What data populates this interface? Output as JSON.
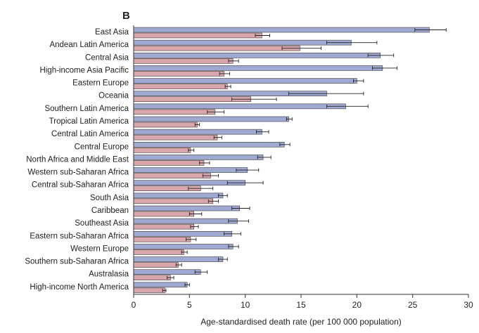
{
  "chart_data": {
    "type": "bar",
    "orientation": "horizontal",
    "panel_label": "B",
    "xlabel": "Age-standardised death rate (per 100 000 population)",
    "xlim": [
      0,
      30
    ],
    "xticks": [
      0,
      5,
      10,
      15,
      20,
      25,
      30
    ],
    "colors": {
      "series_1": "#9fa9d2",
      "series_2": "#d9a6ab"
    },
    "categories": [
      "East Asia",
      "Andean Latin America",
      "Central Asia",
      "High-income Asia Pacific",
      "Eastern Europe",
      "Oceania",
      "Southern Latin America",
      "Tropical Latin America",
      "Central Latin America",
      "Central Europe",
      "North Africa and Middle East",
      "Western sub-Saharan Africa",
      "Central sub-Saharan Africa",
      "South Asia",
      "Caribbean",
      "Southeast Asia",
      "Eastern sub-Saharan Africa",
      "Western Europe",
      "Southern sub-Saharan Africa",
      "Australasia",
      "High-income North America"
    ],
    "series": [
      {
        "name": "series_1",
        "values": [
          26.5,
          19.5,
          22.1,
          22.3,
          20.0,
          17.3,
          19.0,
          13.9,
          11.5,
          13.5,
          11.6,
          10.2,
          10.0,
          8.0,
          9.5,
          9.3,
          8.8,
          8.9,
          8.0,
          6.0,
          4.8
        ],
        "ci_low": [
          25.2,
          17.3,
          21.0,
          21.4,
          19.7,
          13.9,
          17.3,
          13.7,
          11.0,
          13.1,
          11.1,
          9.2,
          8.4,
          7.6,
          8.8,
          8.5,
          8.1,
          8.5,
          7.6,
          5.5,
          4.6
        ],
        "ci_high": [
          28.0,
          21.8,
          23.3,
          23.6,
          20.6,
          20.6,
          21.0,
          14.2,
          12.1,
          14.0,
          12.3,
          11.2,
          11.6,
          8.4,
          10.4,
          10.3,
          9.6,
          9.4,
          8.4,
          6.6,
          5.0
        ]
      },
      {
        "name": "series_2",
        "values": [
          11.5,
          14.9,
          8.9,
          8.1,
          8.4,
          10.5,
          7.3,
          5.7,
          7.5,
          5.1,
          6.3,
          6.9,
          6.0,
          7.1,
          5.4,
          5.4,
          5.1,
          4.5,
          4.0,
          3.3,
          2.8
        ],
        "ci_low": [
          10.9,
          13.3,
          8.5,
          7.7,
          8.2,
          8.8,
          6.6,
          5.5,
          7.2,
          4.9,
          5.9,
          6.2,
          4.9,
          6.7,
          5.0,
          5.1,
          4.7,
          4.3,
          3.8,
          3.0,
          2.6
        ],
        "ci_high": [
          12.2,
          16.8,
          9.4,
          8.6,
          8.7,
          12.8,
          8.1,
          5.9,
          7.9,
          5.4,
          6.8,
          7.6,
          7.1,
          7.6,
          6.1,
          5.8,
          5.6,
          4.8,
          4.3,
          3.6,
          2.9
        ]
      }
    ]
  }
}
